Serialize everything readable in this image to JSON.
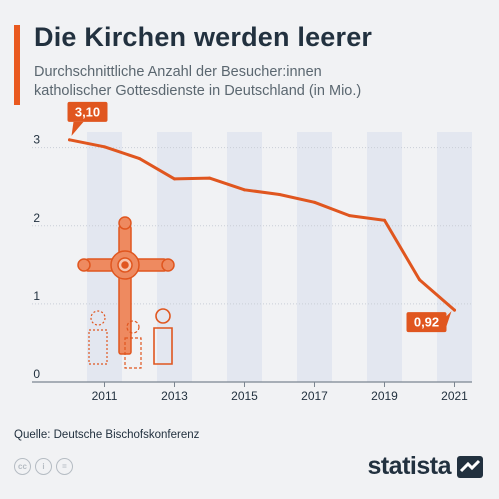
{
  "header": {
    "title": "Die Kirchen werden leerer",
    "subtitle_line1": "Durchschnittliche Anzahl der Besucher:innen",
    "subtitle_line2": "katholischer Gottesdienste in Deutschland (in Mio.)"
  },
  "footer": {
    "source": "Quelle: Deutsche Bischofskonferenz",
    "brand": "statista",
    "license_icons": [
      "cc-icon",
      "by-icon",
      "nd-icon"
    ]
  },
  "colors": {
    "accent": "#e9591f",
    "line": "#e0561f",
    "band": "#e3e7f0",
    "text": "#22313f"
  },
  "chart_data": {
    "type": "line",
    "x": [
      2010,
      2011,
      2012,
      2013,
      2014,
      2015,
      2016,
      2017,
      2018,
      2019,
      2020,
      2021
    ],
    "series": [
      {
        "values": [
          3.1,
          3.01,
          2.86,
          2.6,
          2.61,
          2.46,
          2.4,
          2.3,
          2.13,
          2.07,
          1.31,
          0.92
        ]
      }
    ],
    "x_tick_labels": [
      "2011",
      "2013",
      "2015",
      "2017",
      "2019",
      "2021"
    ],
    "y_tick_labels": [
      "0",
      "1",
      "2",
      "3"
    ],
    "ylim": [
      0,
      3.2
    ],
    "data_labels": [
      {
        "x": 2010,
        "text": "3,10"
      },
      {
        "x": 2021,
        "text": "0,92"
      }
    ],
    "grid": "horizontal",
    "xlabel": "",
    "ylabel": ""
  }
}
